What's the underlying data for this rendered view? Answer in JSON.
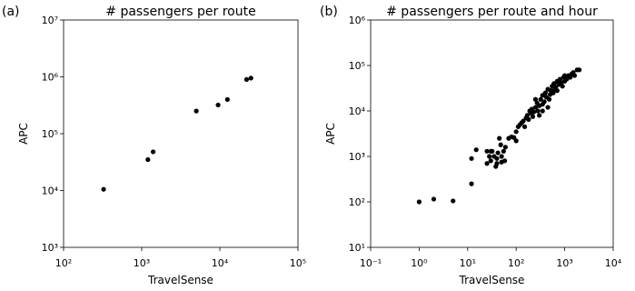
{
  "chart_data": [
    {
      "type": "scatter",
      "panel_label": "(a)",
      "title": "# passengers per route",
      "x_label": "TravelSense",
      "y_label": "APC",
      "xscale": "log",
      "yscale": "log",
      "color": "#000000",
      "xlim": [
        100,
        100000
      ],
      "ylim": [
        1000,
        10000000
      ],
      "xticks": [
        {
          "value": 100,
          "label": "10²"
        },
        {
          "value": 1000,
          "label": "10³"
        },
        {
          "value": 10000,
          "label": "10⁴"
        },
        {
          "value": 100000,
          "label": "10⁵"
        }
      ],
      "yticks": [
        {
          "value": 1000,
          "label": "10³"
        },
        {
          "value": 10000,
          "label": "10⁴"
        },
        {
          "value": 100000,
          "label": "10⁵"
        },
        {
          "value": 1000000,
          "label": "10⁶"
        },
        {
          "value": 10000000,
          "label": "10⁷"
        }
      ],
      "x": [
        325,
        1200,
        1400,
        5000,
        9500,
        12500,
        22000,
        25000
      ],
      "values": [
        10500,
        35000,
        48000,
        250000,
        320000,
        400000,
        900000,
        950000
      ]
    },
    {
      "type": "scatter",
      "panel_label": "(b)",
      "title": "# passengers per route and hour",
      "x_label": "TravelSense",
      "y_label": "APC",
      "xscale": "log",
      "yscale": "log",
      "color": "#000000",
      "xlim": [
        0.1,
        10000
      ],
      "ylim": [
        10,
        1000000
      ],
      "xticks": [
        {
          "value": 0.1,
          "label": "10⁻¹"
        },
        {
          "value": 1,
          "label": "10⁰"
        },
        {
          "value": 10,
          "label": "10¹"
        },
        {
          "value": 100,
          "label": "10²"
        },
        {
          "value": 1000,
          "label": "10³"
        },
        {
          "value": 10000,
          "label": "10⁴"
        }
      ],
      "yticks": [
        {
          "value": 10,
          "label": "10¹"
        },
        {
          "value": 100,
          "label": "10²"
        },
        {
          "value": 1000,
          "label": "10³"
        },
        {
          "value": 10000,
          "label": "10⁴"
        },
        {
          "value": 100000,
          "label": "10⁵"
        },
        {
          "value": 1000000,
          "label": "10⁶"
        }
      ],
      "x": [
        1,
        2,
        5,
        12,
        12,
        15,
        25,
        28,
        30,
        32,
        35,
        38,
        40,
        42,
        45,
        48,
        50,
        55,
        58,
        60,
        25,
        30,
        40,
        50,
        70,
        80,
        90,
        100,
        100,
        110,
        120,
        130,
        140,
        150,
        160,
        170,
        180,
        190,
        200,
        210,
        220,
        230,
        250,
        270,
        280,
        300,
        320,
        350,
        350,
        380,
        400,
        420,
        450,
        480,
        500,
        520,
        550,
        580,
        600,
        630,
        650,
        700,
        700,
        750,
        800,
        850,
        900,
        950,
        1000,
        1000,
        1100,
        1200,
        1300,
        1400,
        1500,
        1600,
        1800,
        2000,
        300,
        350,
        250,
        450
      ],
      "values": [
        100,
        115,
        105,
        250,
        900,
        1400,
        1300,
        1000,
        800,
        1300,
        1000,
        600,
        900,
        1200,
        2500,
        1800,
        1000,
        1300,
        800,
        1600,
        700,
        1300,
        700,
        750,
        2500,
        2700,
        2600,
        2200,
        3500,
        4500,
        5000,
        5500,
        6000,
        4500,
        7000,
        8000,
        6500,
        10000,
        9000,
        11000,
        7500,
        9500,
        12000,
        15000,
        10000,
        13000,
        18000,
        22000,
        14000,
        16000,
        25000,
        20000,
        30000,
        18000,
        23000,
        28000,
        35000,
        25000,
        40000,
        30000,
        33000,
        45000,
        28000,
        38000,
        50000,
        42000,
        35000,
        55000,
        60000,
        45000,
        50000,
        60000,
        55000,
        65000,
        70000,
        60000,
        80000,
        80000,
        8000,
        10000,
        18000,
        12000
      ]
    }
  ]
}
